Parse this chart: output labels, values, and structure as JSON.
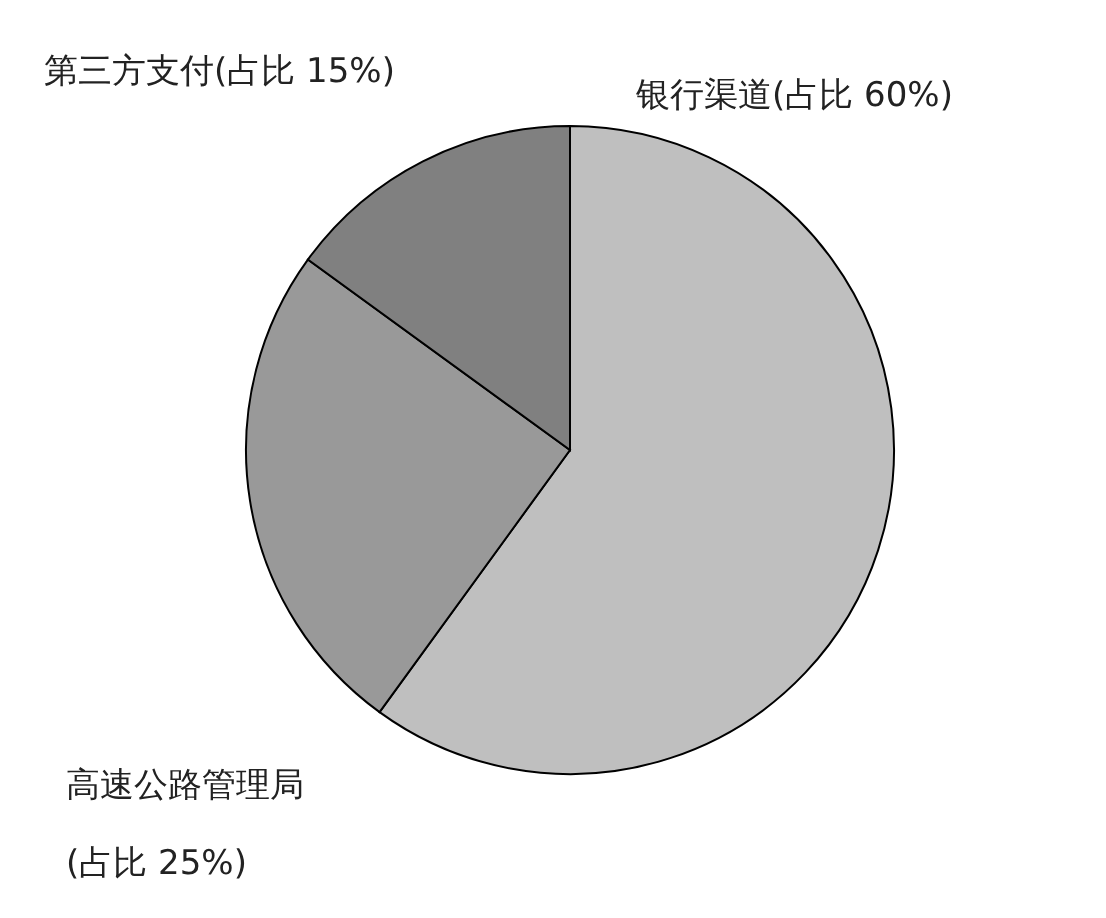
{
  "chart_data": {
    "type": "pie",
    "categories": [
      "银行渠道",
      "高速公路管理局",
      "第三方支付"
    ],
    "values": [
      60,
      25,
      15
    ],
    "colors": [
      "#bfbfbf",
      "#999999",
      "#808080"
    ],
    "value_labels": [
      "(占比 60%)",
      "(占比 25%)",
      "(占比 15%)"
    ]
  }
}
